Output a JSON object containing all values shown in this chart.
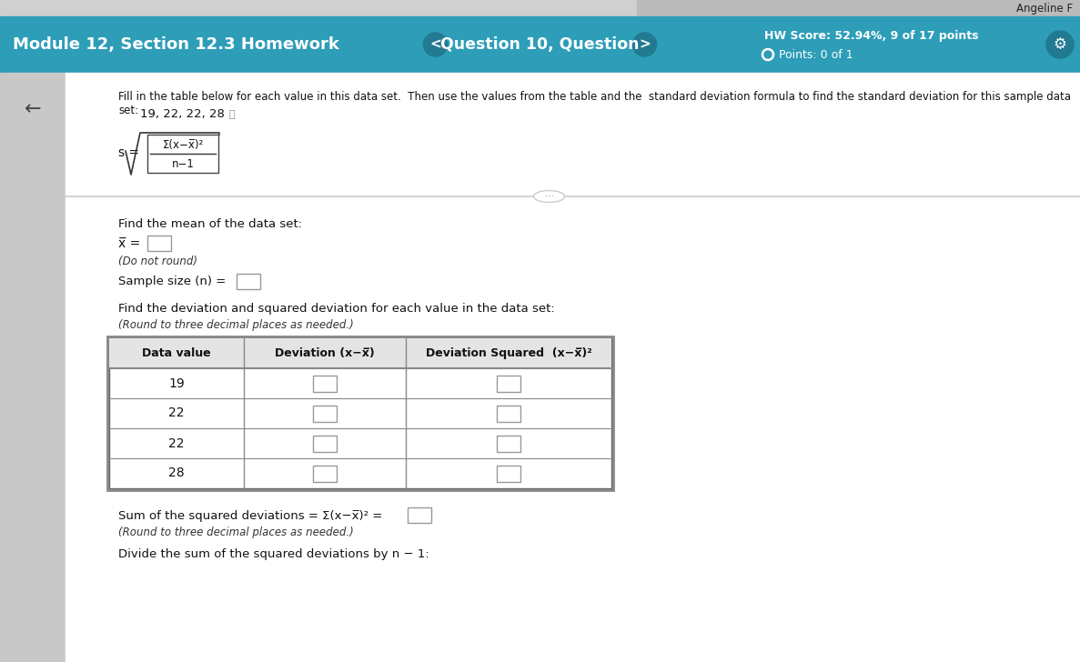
{
  "title_top": "Angeline F",
  "nav_label": "Module 12, Section 12.3 Homework",
  "question_label": "Question 10, Question",
  "hw_score": "HW Score: 52.94%, 9 of 17 points",
  "points": "Points: 0 of 1",
  "header_bg": "#2d9db8",
  "header_top_bg": "#d0d0d0",
  "content_left_bg": "#c8c8c8",
  "content_bg": "#ffffff",
  "fill_text_line1": "Fill in the table below for each value in this data set.  Then use the values from the table and the  standard deviation formula to find the standard deviation for this sample data set:",
  "data_values": "19, 22, 22, 28",
  "find_mean_label": "Find the mean of the data set:",
  "mean_label": "x̅ =",
  "do_not_round": "(Do not round)",
  "sample_size_label": "Sample size (n) =",
  "find_dev_label": "Find the deviation and squared deviation for each value in the data set:",
  "round_note": "(Round to three decimal places as needed.)",
  "table_headers": [
    "Data value",
    "Deviation (x−x̅)",
    "Deviation Squared  (x−x̅)²"
  ],
  "table_data": [
    "19",
    "22",
    "22",
    "28"
  ],
  "sum_label": "Sum of the squared deviations = Σ(x−x̅)² =",
  "round_note2": "(Round to three decimal places as needed.)",
  "divide_label": "Divide the sum of the squared deviations by n − 1:",
  "input_box_border": "#999999",
  "table_border": "#666666",
  "table_header_bg": "#e4e4e4",
  "text_color": "#111111",
  "small_text_color": "#333333"
}
